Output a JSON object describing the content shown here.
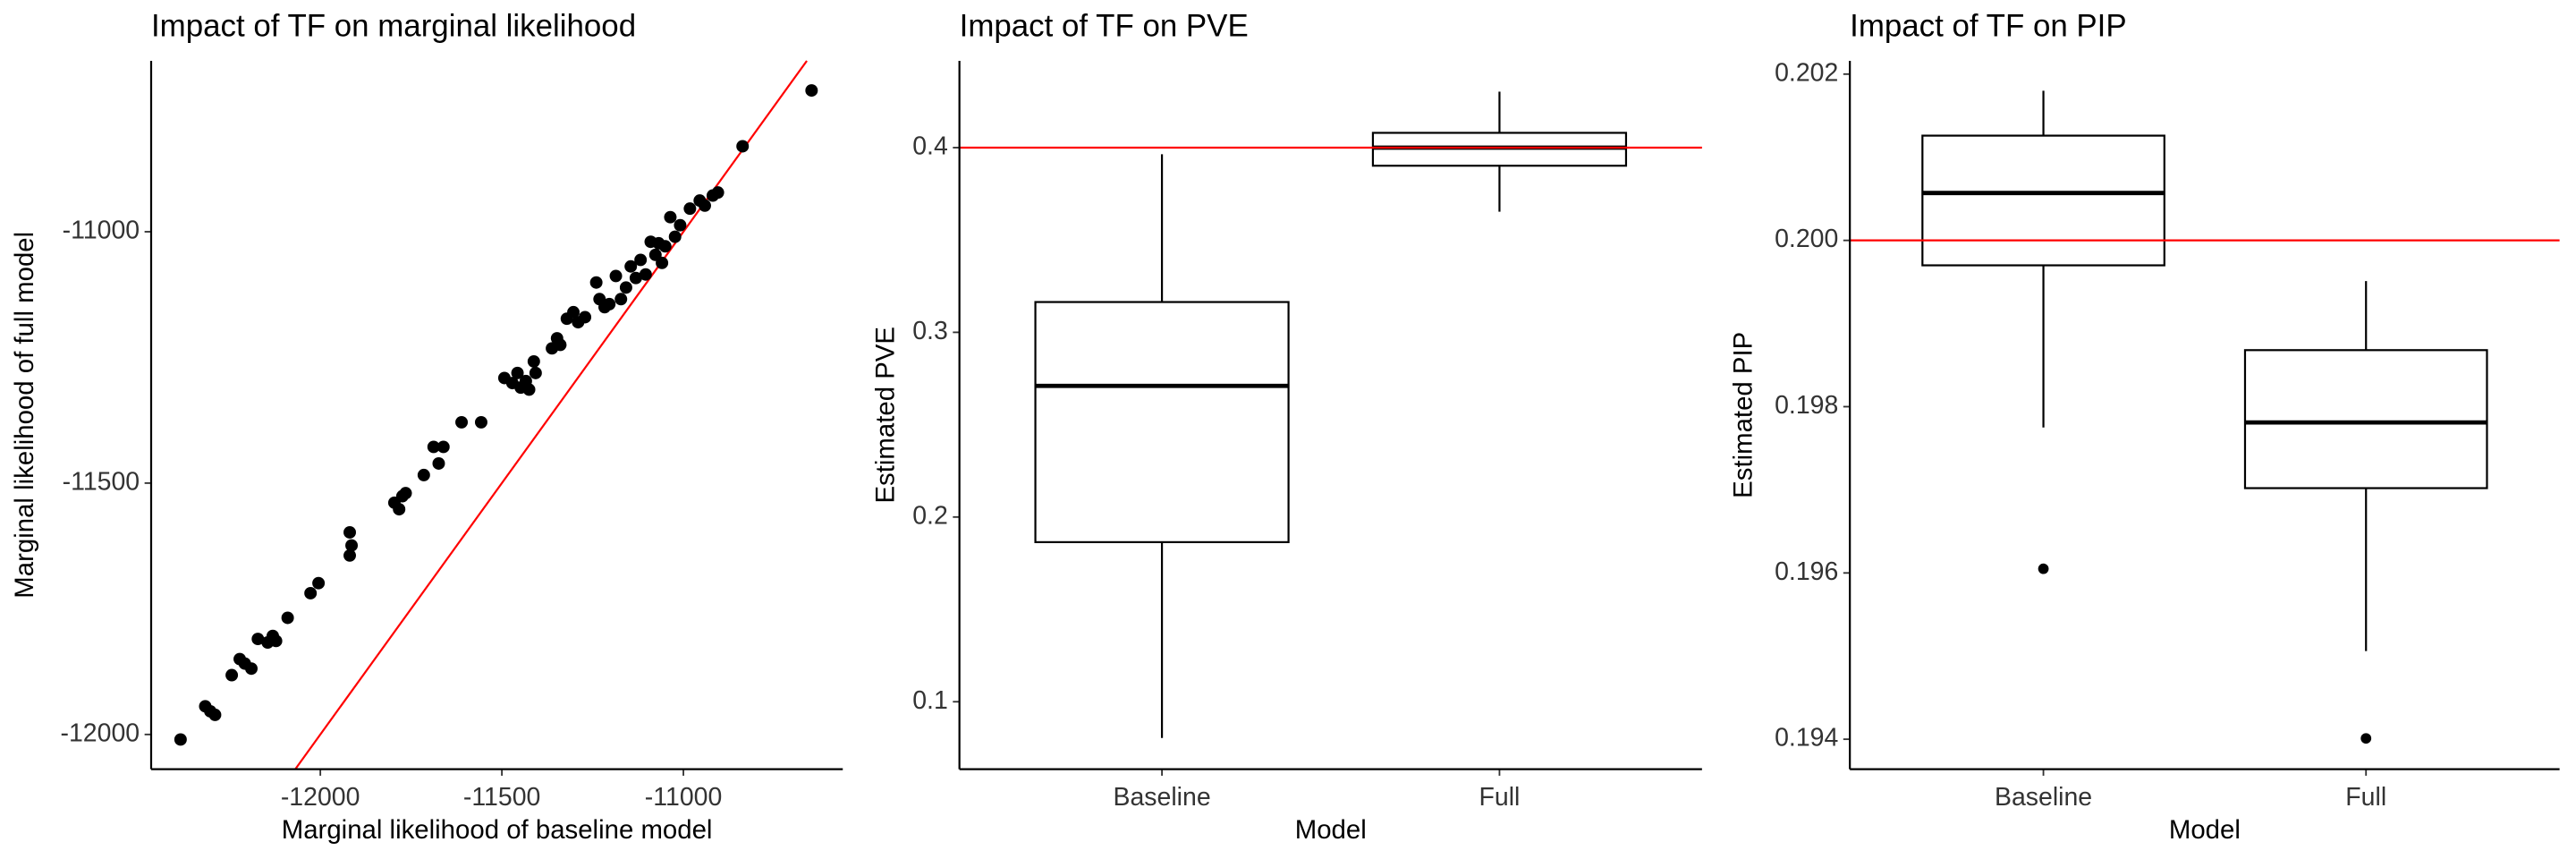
{
  "chart_data": [
    {
      "type": "scatter",
      "title": "Impact of TF on marginal likelihood",
      "xlabel": "Marginal likelihood of baseline model",
      "ylabel": "Marginal likelihood of full model",
      "x": [
        -12385,
        -12317,
        -12303,
        -12290,
        -12244,
        -12222,
        -12208,
        -12190,
        -12172,
        -12145,
        -12131,
        -12122,
        -12090,
        -12027,
        -12005,
        -11919,
        -11919,
        -11914,
        -11796,
        -11783,
        -11774,
        -11765,
        -11715,
        -11688,
        -11674,
        -11661,
        -11611,
        -11557,
        -11493,
        -11471,
        -11457,
        -11448,
        -11434,
        -11425,
        -11412,
        -11407,
        -11362,
        -11348,
        -11339,
        -11321,
        -11303,
        -11290,
        -11271,
        -11240,
        -11231,
        -11217,
        -11204,
        -11186,
        -11172,
        -11158,
        -11145,
        -11131,
        -11118,
        -11104,
        -11090,
        -11077,
        -11068,
        -11059,
        -11050,
        -11036,
        -11023,
        -11009,
        -10982,
        -10955,
        -10941,
        -10919,
        -10905,
        -10837,
        -10647
      ],
      "y": [
        -12010,
        -11944,
        -11954,
        -11961,
        -11882,
        -11850,
        -11859,
        -11869,
        -11810,
        -11817,
        -11804,
        -11814,
        -11768,
        -11719,
        -11699,
        -11644,
        -11598,
        -11624,
        -11539,
        -11552,
        -11526,
        -11520,
        -11484,
        -11428,
        -11461,
        -11428,
        -11379,
        -11379,
        -11291,
        -11301,
        -11281,
        -11310,
        -11297,
        -11314,
        -11258,
        -11281,
        -11232,
        -11212,
        -11225,
        -11173,
        -11160,
        -11180,
        -11170,
        -11101,
        -11134,
        -11150,
        -11144,
        -11088,
        -11134,
        -11111,
        -11069,
        -11092,
        -11056,
        -11085,
        -11020,
        -11046,
        -11023,
        -11062,
        -11029,
        -10971,
        -11010,
        -10987,
        -10954,
        -10938,
        -10948,
        -10928,
        -10922,
        -10830,
        -10719
      ],
      "color": "#000000",
      "identity_line": true,
      "line_color": "#ff0000",
      "xlim": [
        -12466,
        -10561
      ],
      "ylim": [
        -12069,
        -10660
      ],
      "xticks": [
        -12000,
        -11500,
        -11000
      ],
      "yticks": [
        -12000,
        -11500,
        -11000
      ]
    },
    {
      "type": "box",
      "title": "Impact of TF on PVE",
      "xlabel": "Model",
      "ylabel": "Estimated PVE",
      "categories": [
        "Baseline",
        "Full"
      ],
      "boxes": [
        {
          "min": 0.0804,
          "q1": 0.1864,
          "median": 0.271,
          "q3": 0.3164,
          "max": 0.3964,
          "outliers": []
        },
        {
          "min": 0.3653,
          "q1": 0.3902,
          "median": 0.4,
          "q3": 0.408,
          "max": 0.4303,
          "outliers": []
        }
      ],
      "hline": 0.4,
      "line_color": "#ff0000",
      "ylim": [
        0.0635,
        0.447
      ],
      "yticks": [
        0.1,
        0.2,
        0.3,
        0.4
      ]
    },
    {
      "type": "box",
      "title": "Impact of TF on PIP",
      "xlabel": "Model",
      "ylabel": "Estimated PIP",
      "categories": [
        "Baseline",
        "Full"
      ],
      "boxes": [
        {
          "min": 0.19775,
          "q1": 0.1997,
          "median": 0.20057,
          "q3": 0.20126,
          "max": 0.2018,
          "outliers": [
            0.19605
          ]
        },
        {
          "min": 0.19506,
          "q1": 0.19702,
          "median": 0.19781,
          "q3": 0.19868,
          "max": 0.19951,
          "outliers": [
            0.19401
          ]
        }
      ],
      "hline": 0.2,
      "line_color": "#ff0000",
      "ylim": [
        0.19364,
        0.20216
      ],
      "yticks": [
        0.194,
        0.196,
        0.198,
        {
          "value": 0.2,
          "label": "0.200"
        },
        0.202
      ]
    }
  ]
}
